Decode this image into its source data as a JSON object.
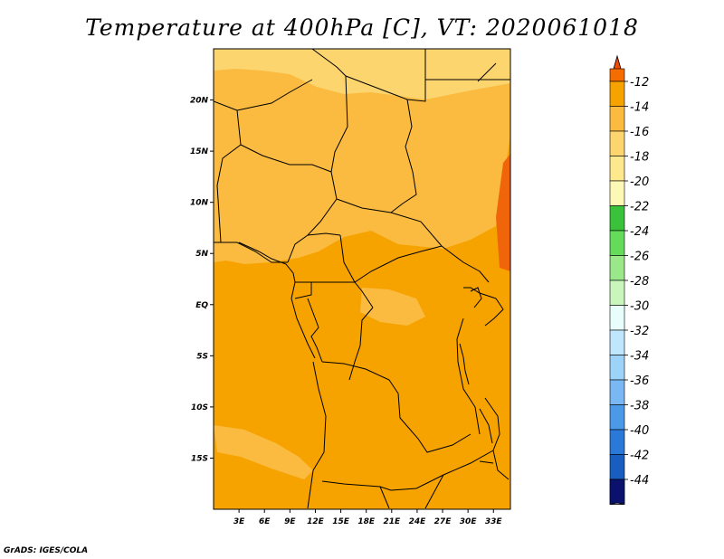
{
  "title": "Temperature at 400hPa [C], VT: 2020061018",
  "credit": "GrADS: IGES/COLA",
  "map": {
    "lon_range": [
      0,
      35
    ],
    "lat_range": [
      -20,
      25
    ],
    "lat_ticks": [
      {
        "lat": 20,
        "label": "20N"
      },
      {
        "lat": 15,
        "label": "15N"
      },
      {
        "lat": 10,
        "label": "10N"
      },
      {
        "lat": 5,
        "label": "5N"
      },
      {
        "lat": 0,
        "label": "EQ"
      },
      {
        "lat": -5,
        "label": "5S"
      },
      {
        "lat": -10,
        "label": "10S"
      },
      {
        "lat": -15,
        "label": "15S"
      }
    ],
    "lon_ticks": [
      {
        "lon": 3,
        "label": "3E"
      },
      {
        "lon": 6,
        "label": "6E"
      },
      {
        "lon": 9,
        "label": "9E"
      },
      {
        "lon": 12,
        "label": "12E"
      },
      {
        "lon": 15,
        "label": "15E"
      },
      {
        "lon": 18,
        "label": "18E"
      },
      {
        "lon": 21,
        "label": "21E"
      },
      {
        "lon": 24,
        "label": "24E"
      },
      {
        "lon": 27,
        "label": "27E"
      },
      {
        "lon": 30,
        "label": "30E"
      },
      {
        "lon": 33,
        "label": "33E"
      }
    ],
    "field_colors": {
      "base": "#f6a300",
      "warm": "#f0640a",
      "mid": "#fbbb40",
      "cool": "#fdd56e",
      "coolest": "#fde88e",
      "boundary": "#000000"
    }
  },
  "colorbar": {
    "levels": [
      {
        "label": "-12",
        "color": "#f6a300"
      },
      {
        "label": "-14",
        "color": "#fbbb40"
      },
      {
        "label": "-16",
        "color": "#fdd56e"
      },
      {
        "label": "-18",
        "color": "#fde88e"
      },
      {
        "label": "-20",
        "color": "#fef8b6"
      },
      {
        "label": "-22",
        "color": "#39c23a"
      },
      {
        "label": "-24",
        "color": "#64dc5a"
      },
      {
        "label": "-26",
        "color": "#9ae88a"
      },
      {
        "label": "-28",
        "color": "#c8f6bd"
      },
      {
        "label": "-30",
        "color": "#e8fefc"
      },
      {
        "label": "-32",
        "color": "#bfe6fd"
      },
      {
        "label": "-34",
        "color": "#9ed3f9"
      },
      {
        "label": "-36",
        "color": "#79b8f3"
      },
      {
        "label": "-38",
        "color": "#4a9ae8"
      },
      {
        "label": "-40",
        "color": "#2a78d8"
      },
      {
        "label": "-42",
        "color": "#185ec0"
      },
      {
        "label": "-44",
        "color": "#0c3a9e"
      }
    ],
    "top_colors": [
      "#ee4a0a",
      "#f56c00"
    ],
    "bottom_color": "#0a126e",
    "low_arrow_color": "#e4e4fa"
  }
}
